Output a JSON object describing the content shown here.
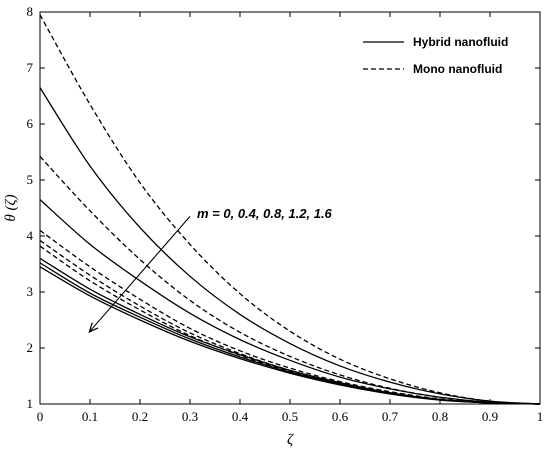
{
  "chart_data": {
    "type": "line",
    "xlabel": "ζ",
    "ylabel": "θ (ζ)",
    "xlim": [
      0,
      1
    ],
    "ylim": [
      1,
      8
    ],
    "xticks": [
      "0",
      "0.1",
      "0.2",
      "0.3",
      "0.4",
      "0.5",
      "0.6",
      "0.7",
      "0.8",
      "0.9",
      "1"
    ],
    "yticks": [
      "1",
      "2",
      "3",
      "4",
      "5",
      "6",
      "7",
      "8"
    ],
    "legend": {
      "position": "top-right",
      "entries": [
        {
          "label": "Hybrid nanofluid",
          "style": "solid"
        },
        {
          "label": "Mono nanofluid",
          "style": "dashed"
        }
      ]
    },
    "annotation": {
      "text": "m = 0, 0.4, 0.8, 1.2, 1.6",
      "arrow_from": [
        0.3,
        4.35
      ],
      "arrow_to": [
        0.1,
        2.3
      ]
    },
    "x": [
      0,
      0.1,
      0.2,
      0.3,
      0.4,
      0.5,
      0.6,
      0.7,
      0.8,
      0.9,
      1
    ],
    "series": [
      {
        "group": "hybrid",
        "style": "solid",
        "color": "#000000",
        "values": [
          6.65,
          5.25,
          4.15,
          3.28,
          2.6,
          2.08,
          1.68,
          1.39,
          1.18,
          1.05,
          1.0
        ]
      },
      {
        "group": "hybrid",
        "style": "solid",
        "color": "#000000",
        "values": [
          4.65,
          3.85,
          3.2,
          2.62,
          2.15,
          1.78,
          1.48,
          1.27,
          1.12,
          1.03,
          1.0
        ]
      },
      {
        "group": "hybrid",
        "style": "solid",
        "color": "#000000",
        "values": [
          3.6,
          3.05,
          2.6,
          2.2,
          1.88,
          1.6,
          1.38,
          1.2,
          1.08,
          1.02,
          1.0
        ]
      },
      {
        "group": "hybrid",
        "style": "solid",
        "color": "#000000",
        "values": [
          3.52,
          2.98,
          2.55,
          2.16,
          1.84,
          1.57,
          1.36,
          1.19,
          1.08,
          1.02,
          1.0
        ]
      },
      {
        "group": "hybrid",
        "style": "solid",
        "color": "#000000",
        "values": [
          3.45,
          2.93,
          2.5,
          2.12,
          1.81,
          1.55,
          1.34,
          1.18,
          1.07,
          1.02,
          1.0
        ]
      },
      {
        "group": "mono",
        "style": "dashed",
        "color": "#000000",
        "values": [
          7.95,
          6.35,
          4.95,
          3.85,
          2.97,
          2.3,
          1.8,
          1.45,
          1.2,
          1.05,
          1.0
        ]
      },
      {
        "group": "mono",
        "style": "dashed",
        "color": "#000000",
        "values": [
          5.42,
          4.45,
          3.58,
          2.85,
          2.28,
          1.85,
          1.52,
          1.28,
          1.12,
          1.03,
          1.0
        ]
      },
      {
        "group": "mono",
        "style": "dashed",
        "color": "#000000",
        "values": [
          4.1,
          3.45,
          2.87,
          2.35,
          1.95,
          1.64,
          1.4,
          1.22,
          1.09,
          1.02,
          1.0
        ]
      },
      {
        "group": "mono",
        "style": "dashed",
        "color": "#000000",
        "values": [
          3.92,
          3.3,
          2.75,
          2.27,
          1.9,
          1.6,
          1.38,
          1.2,
          1.08,
          1.02,
          1.0
        ]
      },
      {
        "group": "mono",
        "style": "dashed",
        "color": "#000000",
        "values": [
          3.82,
          3.2,
          2.68,
          2.22,
          1.87,
          1.58,
          1.36,
          1.19,
          1.08,
          1.02,
          1.0
        ]
      }
    ]
  }
}
